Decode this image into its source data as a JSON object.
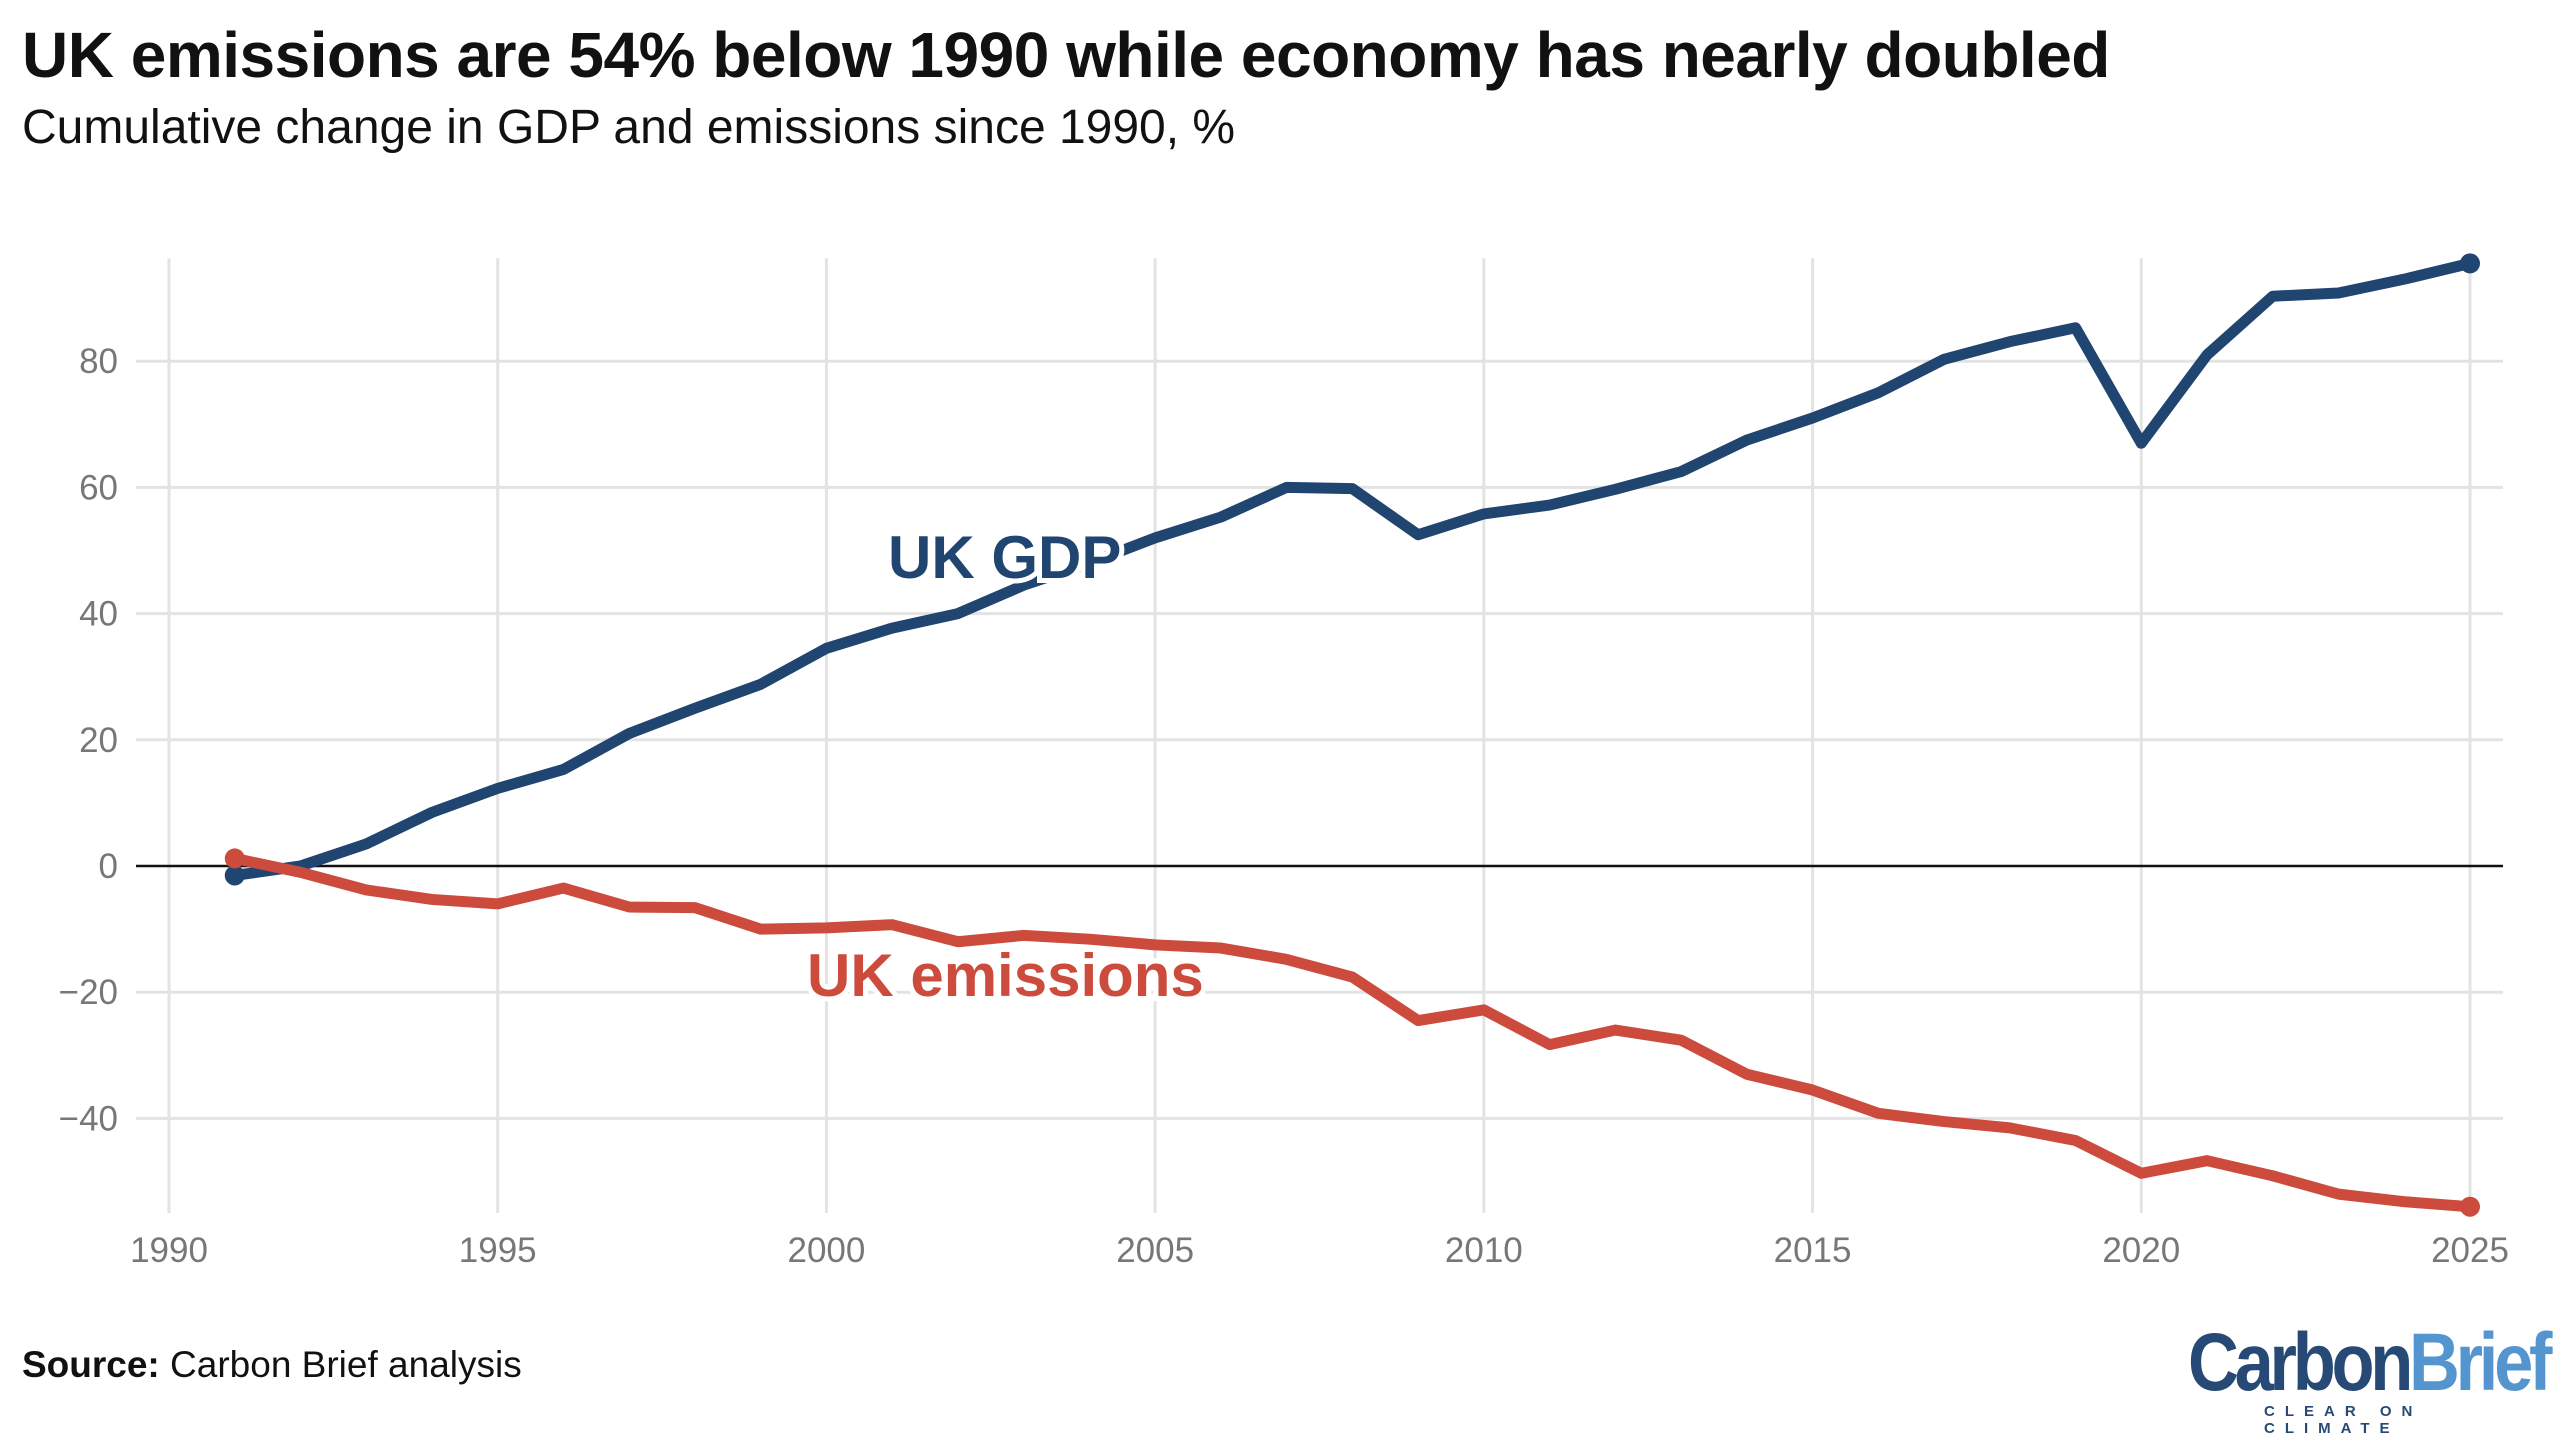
{
  "chart_data": {
    "type": "line",
    "title": "UK emissions are 54% below 1990 while economy has nearly doubled",
    "subtitle": "Cumulative change in GDP and emissions since 1990, %",
    "xlabel": "",
    "ylabel": "",
    "xlim": [
      1990,
      2025
    ],
    "ylim": [
      -55,
      96
    ],
    "x_ticks": [
      "1990",
      "1995",
      "2000",
      "2005",
      "2010",
      "2015",
      "2020",
      "2025"
    ],
    "y_ticks": [
      "−40",
      "−20",
      "0",
      "20",
      "40",
      "60",
      "80"
    ],
    "grid": true,
    "x": [
      1991,
      1992,
      1993,
      1994,
      1995,
      1996,
      1997,
      1998,
      1999,
      2000,
      2001,
      2002,
      2003,
      2004,
      2005,
      2006,
      2007,
      2008,
      2009,
      2010,
      2011,
      2012,
      2013,
      2014,
      2015,
      2016,
      2017,
      2018,
      2019,
      2020,
      2021,
      2022,
      2023,
      2024,
      2025
    ],
    "series": [
      {
        "name": "UK GDP",
        "color": "#1f4570",
        "values": [
          -1.5,
          0,
          3.5,
          8.5,
          12.3,
          15.3,
          21,
          25,
          28.8,
          34.5,
          37.7,
          40,
          44.5,
          48,
          52,
          55.3,
          60,
          59.8,
          52.5,
          55.8,
          57.2,
          59.7,
          62.5,
          67.5,
          71,
          75,
          80.3,
          83.1,
          85.3,
          67,
          81,
          90.3,
          90.8,
          93,
          95.5
        ]
      },
      {
        "name": "UK emissions",
        "color": "#cc4b3c",
        "values": [
          1.2,
          -1,
          -3.8,
          -5.3,
          -6,
          -3.5,
          -6.5,
          -6.6,
          -10,
          -9.8,
          -9.3,
          -12,
          -11,
          -11.6,
          -12.5,
          -13,
          -14.8,
          -17.6,
          -24.5,
          -22.8,
          -28.3,
          -26,
          -27.6,
          -33,
          -35.5,
          -39.2,
          -40.5,
          -41.5,
          -43.5,
          -48.7,
          -46.7,
          -49.1,
          -52,
          -53.2,
          -54
        ]
      }
    ],
    "legend": "inline labels"
  },
  "source": {
    "label": "Source:",
    "text": "Carbon Brief analysis"
  },
  "logo": {
    "carbon": "Carbon",
    "brief": "Brief",
    "tagline": "CLEAR ON CLIMATE"
  }
}
